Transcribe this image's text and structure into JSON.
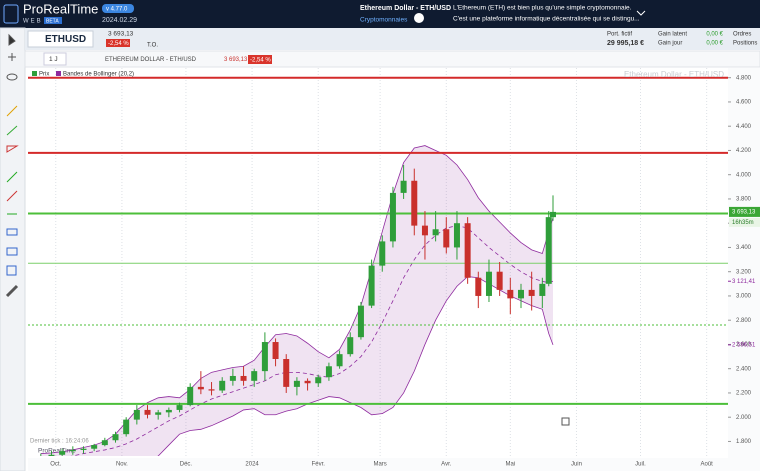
{
  "header": {
    "logo": "ProRealTime",
    "logo_sub": "WEB",
    "badge": "BETA",
    "version": "v 4.77.0",
    "date": "2024.02.29",
    "instrument": "Ethereum Dollar - ETH/USD",
    "category": "Cryptomonnaies",
    "desc_line1": "L'Ethereum (ETH) est bien plus qu'une simple cryptomonnaie.",
    "desc_line2": "C'est une plateforme informatique décentralisée qui se distingu..."
  },
  "symbol_bar": {
    "symbol": "ETHUSD",
    "price": "3 693,13",
    "change": "-2,54 %",
    "to": "T.O.",
    "portfolio_label": "Port. fictif",
    "portfolio_value": "29 995,18 €",
    "gain_latent_label": "Gain latent",
    "gain_latent_value": "0,00 €",
    "gain_day_label": "Gain jour",
    "gain_day_value": "0,00 €",
    "orders": "Ordres",
    "positions": "Positions"
  },
  "chart_toolbar": {
    "period": "1 J",
    "instrument": "ETHEREUM DOLLAR - ETH/USD",
    "price": "3 693,13",
    "change": "-2,54 %"
  },
  "footer": {
    "last_tick": "Dernier tick : 16:24:06",
    "brand": "ProRealTime"
  },
  "chart_data": {
    "type": "candlestick",
    "watermark": "Ethereum Dollar - ETH/USD",
    "countdown": "16h35m",
    "grid": "x",
    "up_color": "#2f9e3a",
    "down_color": "#c9302c",
    "xlim": [
      -13,
      315
    ],
    "xticks": [
      {
        "value": 0,
        "label": "Oct."
      },
      {
        "value": 31,
        "label": "Nov."
      },
      {
        "value": 61,
        "label": "Déc."
      },
      {
        "value": 92,
        "label": "2024"
      },
      {
        "value": 123,
        "label": "Févr."
      },
      {
        "value": 152,
        "label": "Mars"
      },
      {
        "value": 183,
        "label": "Avr."
      },
      {
        "value": 213,
        "label": "Mai"
      },
      {
        "value": 244,
        "label": "Juin"
      },
      {
        "value": 274,
        "label": "Juil."
      },
      {
        "value": 305,
        "label": "Août"
      }
    ],
    "ylim": [
      1680,
      4880
    ],
    "yticks": [
      {
        "value": 1800,
        "label": "1.800"
      },
      {
        "value": 2000,
        "label": "2.000"
      },
      {
        "value": 2200,
        "label": "2.200"
      },
      {
        "value": 2400,
        "label": "2.400"
      },
      {
        "value": 2600,
        "label": "2.600"
      },
      {
        "value": 2800,
        "label": "2.800"
      },
      {
        "value": 3000,
        "label": "3.000"
      },
      {
        "value": 3200,
        "label": "3.200"
      },
      {
        "value": 3400,
        "label": "3.400"
      },
      {
        "value": 3600,
        "label": "3.600"
      },
      {
        "value": 3800,
        "label": "3.800"
      },
      {
        "value": 4000,
        "label": "4.000"
      },
      {
        "value": 4200,
        "label": "4.200"
      },
      {
        "value": 4400,
        "label": "4.400"
      },
      {
        "value": 4600,
        "label": "4.600"
      },
      {
        "value": 4800,
        "label": "4.800"
      }
    ],
    "x": [
      -7,
      -2,
      3,
      8,
      13,
      18,
      23,
      28,
      33,
      38,
      43,
      48,
      53,
      58,
      63,
      68,
      73,
      78,
      83,
      88,
      93,
      98,
      103,
      108,
      113,
      118,
      123,
      128,
      133,
      138,
      143,
      148,
      153,
      158,
      163,
      168,
      173,
      178,
      183,
      188,
      193,
      198,
      203,
      208,
      213,
      218,
      223,
      228,
      231,
      233
    ],
    "series": [
      {
        "name": "Prix",
        "color": "#2f9e3a",
        "open": [
          1660,
          1680,
          1690,
          1720,
          1730,
          1740,
          1770,
          1810,
          1860,
          1980,
          2060,
          2020,
          2040,
          2060,
          2100,
          2250,
          2230,
          2220,
          2300,
          2340,
          2300,
          2380,
          2620,
          2480,
          2250,
          2300,
          2280,
          2330,
          2420,
          2520,
          2660,
          2920,
          3250,
          3450,
          3850,
          3950,
          3580,
          3500,
          3550,
          3400,
          3600,
          3150,
          3000,
          3200,
          3050,
          2980,
          3050,
          3000,
          3100,
          3650
        ],
        "high": [
          1700,
          1720,
          1740,
          1760,
          1760,
          1780,
          1830,
          1880,
          2000,
          2100,
          2100,
          2060,
          2080,
          2120,
          2280,
          2380,
          2290,
          2330,
          2400,
          2420,
          2400,
          2700,
          2650,
          2520,
          2330,
          2320,
          2350,
          2450,
          2550,
          2700,
          2950,
          3300,
          3500,
          3900,
          4080,
          4050,
          3700,
          3700,
          3650,
          3700,
          3650,
          3200,
          3300,
          3280,
          3150,
          3100,
          3200,
          3150,
          3700,
          3830
        ],
        "low": [
          1640,
          1650,
          1660,
          1690,
          1700,
          1720,
          1760,
          1790,
          1840,
          1940,
          1990,
          1980,
          2000,
          2040,
          2090,
          2190,
          2180,
          2200,
          2260,
          2260,
          2250,
          2300,
          2420,
          2200,
          2180,
          2220,
          2250,
          2300,
          2400,
          2500,
          2640,
          2900,
          3200,
          3400,
          3800,
          3500,
          3300,
          3450,
          3350,
          3300,
          3100,
          2900,
          2950,
          3000,
          2850,
          2900,
          2880,
          2900,
          3080,
          3620
        ],
        "close": [
          1680,
          1690,
          1720,
          1730,
          1740,
          1770,
          1810,
          1860,
          1980,
          2060,
          2020,
          2040,
          2060,
          2100,
          2250,
          2230,
          2220,
          2300,
          2340,
          2300,
          2380,
          2620,
          2480,
          2250,
          2300,
          2280,
          2330,
          2420,
          2520,
          2660,
          2920,
          3250,
          3450,
          3850,
          3950,
          3580,
          3500,
          3550,
          3400,
          3600,
          3150,
          3000,
          3200,
          3050,
          2980,
          3050,
          3000,
          3100,
          3650,
          3693.13
        ]
      },
      {
        "name": "Bandes de Bollinger (20,2)",
        "color": "#8e2a9e",
        "upper": [
          1700,
          1705,
          1715,
          1730,
          1750,
          1770,
          1800,
          1860,
          1960,
          2060,
          2120,
          2160,
          2170,
          2160,
          2230,
          2320,
          2370,
          2390,
          2410,
          2420,
          2470,
          2580,
          2680,
          2690,
          2670,
          2610,
          2540,
          2490,
          2560,
          2720,
          2920,
          3220,
          3530,
          3840,
          4100,
          4220,
          4240,
          4200,
          4160,
          4080,
          3960,
          3810,
          3700,
          3610,
          3520,
          3440,
          3380,
          3350,
          3530,
          3646.31
        ],
        "middle": [
          1640,
          1650,
          1665,
          1680,
          1700,
          1715,
          1730,
          1750,
          1780,
          1820,
          1870,
          1920,
          1970,
          2010,
          2060,
          2110,
          2150,
          2180,
          2210,
          2240,
          2270,
          2300,
          2350,
          2370,
          2370,
          2360,
          2340,
          2330,
          2360,
          2420,
          2500,
          2620,
          2780,
          2960,
          3150,
          3300,
          3420,
          3500,
          3560,
          3580,
          3560,
          3480,
          3400,
          3330,
          3260,
          3200,
          3150,
          3120,
          3110,
          3121.41
        ],
        "lower": [
          1580,
          1595,
          1615,
          1630,
          1650,
          1660,
          1660,
          1640,
          1600,
          1580,
          1620,
          1680,
          1770,
          1860,
          1890,
          1900,
          1930,
          1970,
          2010,
          2060,
          2070,
          2020,
          2020,
          2050,
          2070,
          2110,
          2140,
          2170,
          2160,
          2120,
          2080,
          2020,
          2030,
          2080,
          2200,
          2380,
          2600,
          2800,
          2960,
          3080,
          3160,
          3150,
          3100,
          3050,
          3000,
          2960,
          2920,
          2890,
          2690,
          2596.51
        ]
      }
    ],
    "hlines": [
      {
        "value": 4800,
        "color": "#d42a2a",
        "style": "solid"
      },
      {
        "value": 4180,
        "color": "#d42a2a",
        "style": "solid"
      },
      {
        "value": 3680,
        "color": "#4cbf3a",
        "style": "solid"
      },
      {
        "value": 3270,
        "color": "#7ccf6a",
        "style": "thin"
      },
      {
        "value": 2760,
        "color": "#4cbf3a",
        "style": "dotted"
      },
      {
        "value": 2110,
        "color": "#4cbf3a",
        "style": "solid"
      }
    ],
    "price_labels": [
      {
        "value": 3693.13,
        "label": "3 693,13",
        "color": "#3aa635",
        "boxed": true
      },
      {
        "value": 3121.41,
        "label": "3 121,41",
        "color": "#8e2a9e",
        "boxed": false
      },
      {
        "value": 2596.51,
        "label": "2 596,51",
        "color": "#8e2a9e",
        "boxed": false
      }
    ]
  }
}
